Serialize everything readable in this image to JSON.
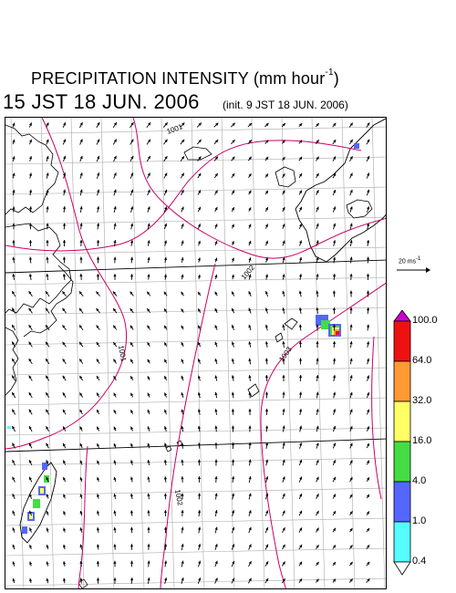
{
  "title": {
    "main": "PRECIPITATION INTENSITY (mm hour",
    "unit_exp": "-1",
    "close": ")"
  },
  "valid_time": "15 JST 18 JUN. 2006",
  "init_time": "(init. 9 JST 18 JUN. 2006)",
  "reference_vector": {
    "label": "20 ms",
    "label_exp": "-1",
    "speed_ms": 20
  },
  "colorbar": {
    "labels": [
      "100.0",
      "64.0",
      "32.0",
      "16.0",
      "4.0",
      "1.0",
      "0.4"
    ],
    "colors": [
      "#cc00cc",
      "#ee1111",
      "#ff9933",
      "#ffff66",
      "#44dd44",
      "#5566ff",
      "#55ffff",
      "#ffffff"
    ],
    "top_triangle_color": "#cc00cc",
    "bottom_triangle_color": "#ffffff"
  },
  "isobar_labels": [
    "1001",
    "1002",
    "1003",
    "1001",
    "1002"
  ],
  "colors": {
    "coast": "#000000",
    "grid": "#aaaaaa",
    "isobar": "#cc0066",
    "arrow": "#000000"
  }
}
